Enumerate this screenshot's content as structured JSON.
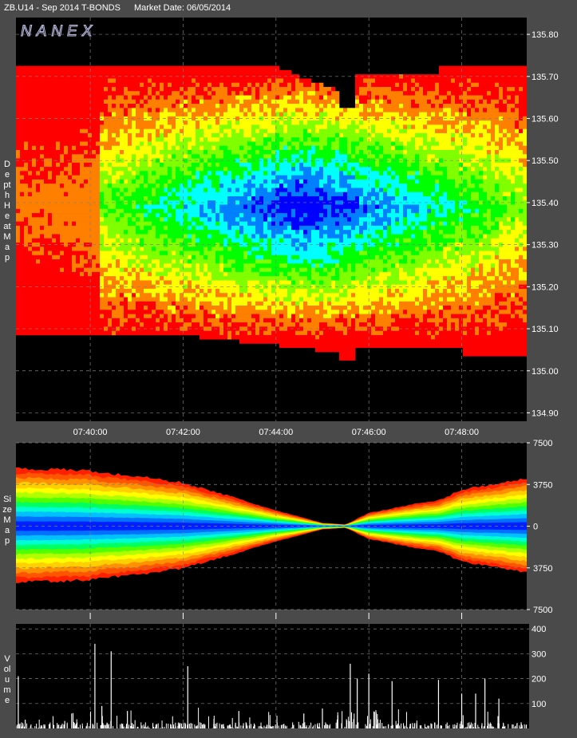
{
  "header": {
    "symbol": "ZB.U14 - Sep 2014 T-BONDS",
    "market_date": "Market Date: 06/05/2014"
  },
  "watermark": "NANEX",
  "panel_labels": {
    "heat": "Depth Heat Map",
    "size": "Size Map",
    "volume": "Volume"
  },
  "colors": {
    "background": "#000000",
    "frame": "#4a4a4a",
    "grid": "#808080",
    "volume_bar": "#ffffff"
  },
  "chart_data": [
    {
      "type": "heatmap",
      "name": "Depth Heat Map",
      "x_ticks": [
        "07:40:00",
        "07:42:00",
        "07:44:00",
        "07:46:00",
        "07:48:00"
      ],
      "y_ticks": [
        135.8,
        135.7,
        135.6,
        135.5,
        135.4,
        135.3,
        135.2,
        135.1,
        135.0,
        134.9
      ],
      "y_tick_labels": [
        "135.80",
        "135.70",
        "135.60",
        "135.50",
        "135.40",
        "135.30",
        "135.20",
        "135.10",
        "135.00",
        "134.90"
      ],
      "ylim": [
        134.9,
        135.8
      ],
      "x_range_minutes": [
        -1.6,
        9.4
      ],
      "book_range_minutes": [
        -1.6,
        9.4
      ],
      "color_scale": [
        "#ff0000",
        "#ff8000",
        "#ffff00",
        "#80ff00",
        "#00ff00",
        "#00ffff",
        "#0080ff",
        "#0000ff"
      ],
      "grid": true
    },
    {
      "type": "area",
      "name": "Size Map",
      "y_ticks": [
        7500,
        3750,
        0,
        -3750,
        -7500
      ],
      "y_tick_labels": [
        "7500",
        "3750",
        "0",
        "3750",
        "7500"
      ],
      "ylim": [
        -7500,
        7500
      ],
      "x_range_minutes": [
        -1.6,
        9.4
      ],
      "envelope_minutes": [
        -1.6,
        0.0,
        0.2,
        1.0,
        2.0,
        3.0,
        4.0,
        5.0,
        5.5,
        6.0,
        7.0,
        7.5,
        8.0,
        9.0,
        9.4
      ],
      "envelope_size": [
        5200,
        5000,
        4800,
        4500,
        3900,
        2700,
        1400,
        300,
        150,
        1200,
        2000,
        2300,
        3300,
        4000,
        4300
      ],
      "grid": true
    },
    {
      "type": "bar",
      "name": "Volume",
      "y_ticks": [
        400,
        300,
        200,
        100
      ],
      "y_tick_labels": [
        "400",
        "300",
        "200",
        "100"
      ],
      "ylim": [
        0,
        420
      ],
      "x_range_minutes": [
        -1.6,
        9.4
      ],
      "spikes": [
        {
          "t": -1.55,
          "v": 210
        },
        {
          "t": -1.4,
          "v": 35
        },
        {
          "t": -0.55,
          "v": 30
        },
        {
          "t": -0.4,
          "v": 60
        },
        {
          "t": 0.1,
          "v": 340
        },
        {
          "t": 0.25,
          "v": 90
        },
        {
          "t": 0.45,
          "v": 310
        },
        {
          "t": 0.8,
          "v": 70
        },
        {
          "t": 2.1,
          "v": 250
        },
        {
          "t": 3.2,
          "v": 70
        },
        {
          "t": 4.6,
          "v": 60
        },
        {
          "t": 5.0,
          "v": 80
        },
        {
          "t": 5.6,
          "v": 260
        },
        {
          "t": 5.75,
          "v": 200
        },
        {
          "t": 6.0,
          "v": 220
        },
        {
          "t": 6.5,
          "v": 190
        },
        {
          "t": 7.5,
          "v": 195
        },
        {
          "t": 8.0,
          "v": 140
        },
        {
          "t": 8.3,
          "v": 140
        },
        {
          "t": 8.5,
          "v": 200
        },
        {
          "t": 8.8,
          "v": 120
        }
      ],
      "grid": true
    }
  ]
}
